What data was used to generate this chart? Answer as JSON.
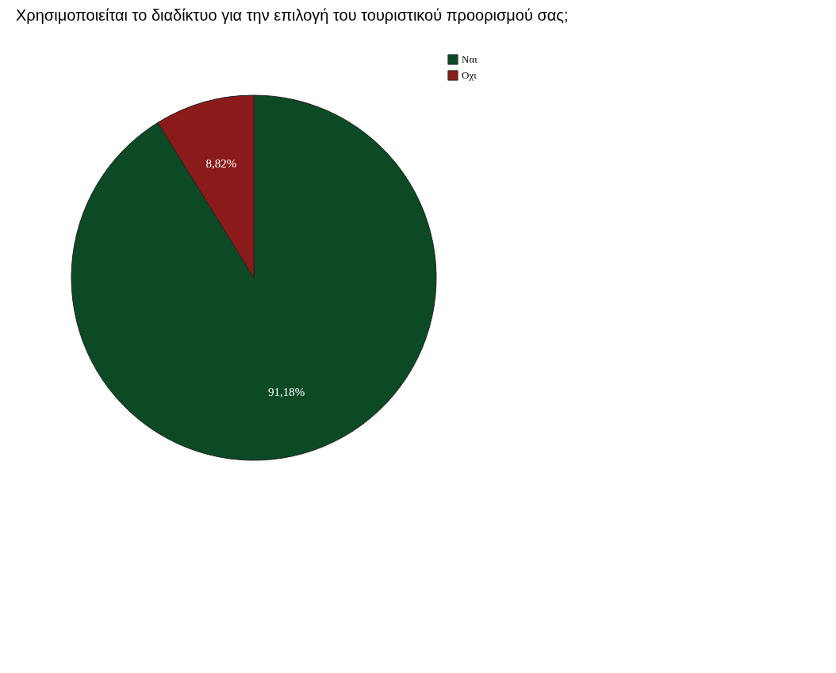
{
  "chart_data": {
    "type": "pie",
    "title": "Χρησιμοποιείται το διαδίκτυο για την επιλογή του τουριστικού προορισμού σας;",
    "categories": [
      "Ναι",
      "Οχι"
    ],
    "values": [
      91.18,
      8.82
    ],
    "value_labels": [
      "91,18%",
      "8,82%"
    ],
    "colors": [
      "#0b4a24",
      "#8b1a1a"
    ],
    "legend": "top right"
  }
}
